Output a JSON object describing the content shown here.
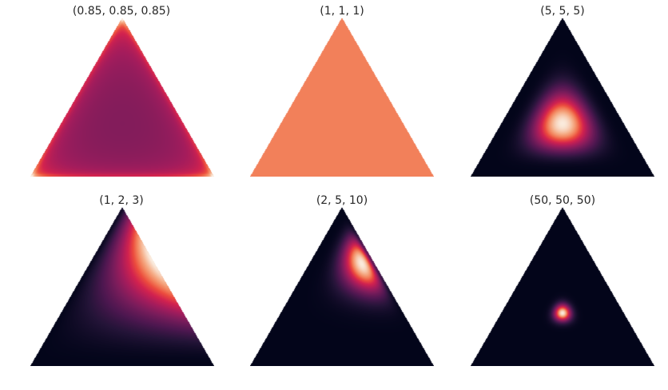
{
  "chart_data": [
    {
      "type": "heatmap",
      "title": "(0.85, 0.85, 0.85)",
      "alpha": [
        0.85,
        0.85,
        0.85
      ],
      "colormap": "rocket"
    },
    {
      "type": "heatmap",
      "title": "(1, 1, 1)",
      "alpha": [
        1,
        1,
        1
      ],
      "colormap": "rocket"
    },
    {
      "type": "heatmap",
      "title": "(5, 5, 5)",
      "alpha": [
        5,
        5,
        5
      ],
      "colormap": "rocket"
    },
    {
      "type": "heatmap",
      "title": "(1, 2, 3)",
      "alpha": [
        1,
        2,
        3
      ],
      "colormap": "rocket"
    },
    {
      "type": "heatmap",
      "title": "(2, 5, 10)",
      "alpha": [
        2,
        5,
        10
      ],
      "colormap": "rocket"
    },
    {
      "type": "heatmap",
      "title": "(50, 50, 50)",
      "alpha": [
        50,
        50,
        50
      ],
      "colormap": "rocket"
    }
  ]
}
